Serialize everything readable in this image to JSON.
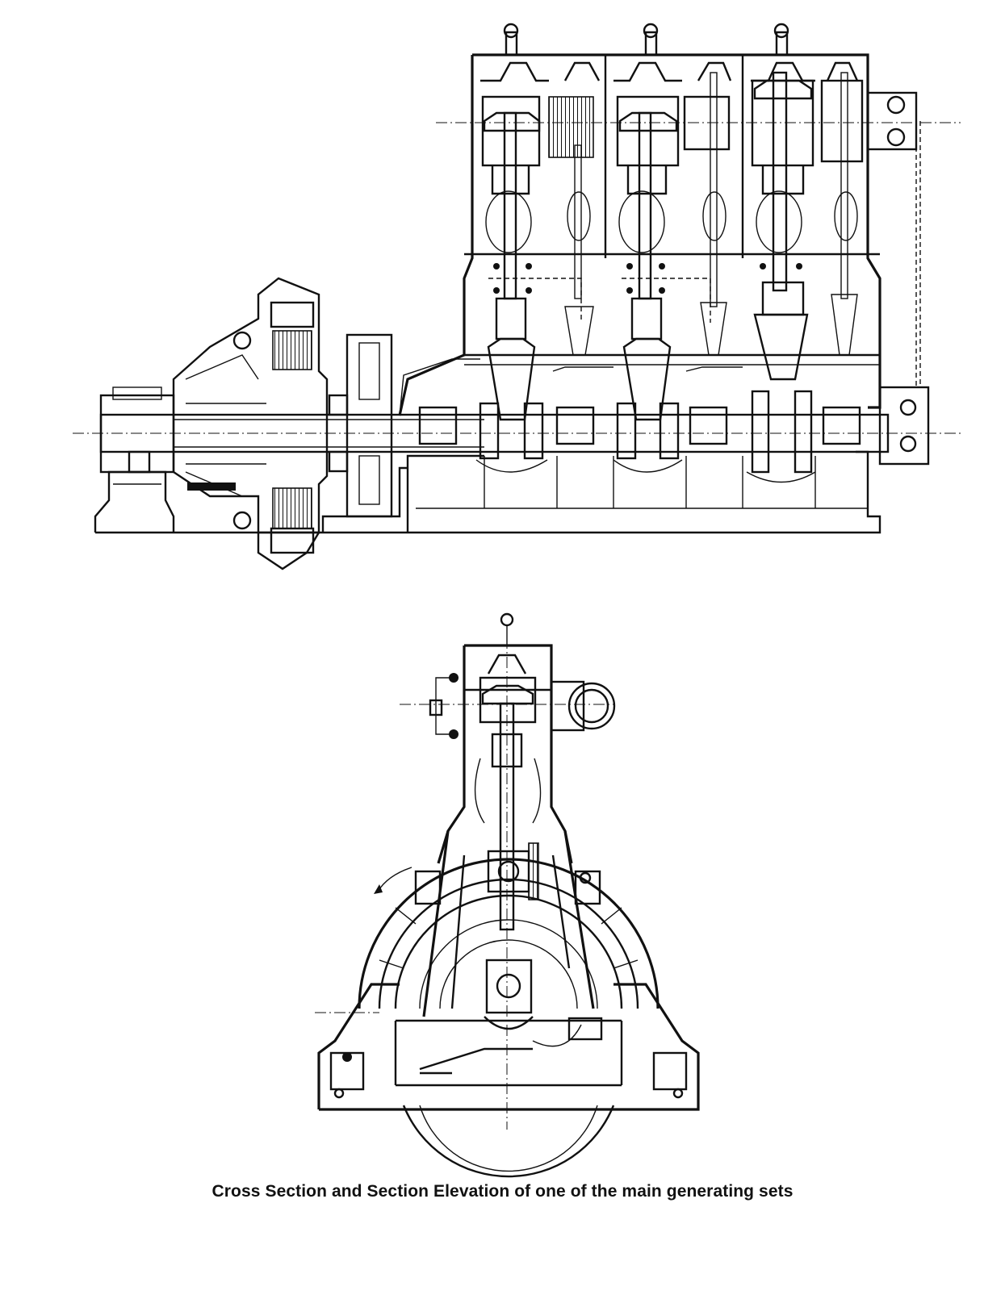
{
  "figure": {
    "caption": "Cross Section and Section Elevation of one of the main generating sets"
  },
  "drawings": {
    "section_elevation": {
      "cylinders": 3,
      "icon": "engine-elevation-drawing"
    },
    "cross_section": {
      "icon": "engine-cross-section-drawing"
    }
  }
}
